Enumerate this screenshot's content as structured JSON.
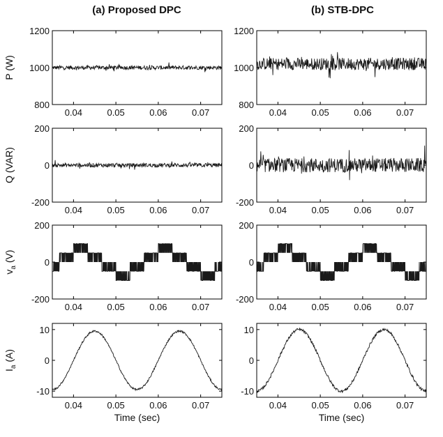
{
  "figure": {
    "columns": [
      {
        "title": "(a) Proposed DPC"
      },
      {
        "title": "(b) STB-DPC"
      }
    ],
    "xlabel": "Time (sec)"
  },
  "chart_data": [
    {
      "type": "line",
      "column": "(a) Proposed DPC",
      "ylabel": "P (W)",
      "xlim": [
        0.035,
        0.075
      ],
      "ylim": [
        800,
        1200
      ],
      "xticks": [
        0.04,
        0.05,
        0.06,
        0.07
      ],
      "xtick_labels": [
        "0.04",
        "0.05",
        "0.06",
        "0.07"
      ],
      "yticks": [
        800,
        1000,
        1200
      ],
      "ytick_labels": [
        "800",
        "1000",
        "1200"
      ],
      "series": [
        {
          "shape": "noise",
          "mean": 1000,
          "ripple": 20
        }
      ]
    },
    {
      "type": "line",
      "column": "(b) STB-DPC",
      "ylabel": "",
      "xlim": [
        0.035,
        0.075
      ],
      "ylim": [
        800,
        1200
      ],
      "xticks": [
        0.04,
        0.05,
        0.06,
        0.07
      ],
      "xtick_labels": [
        "0.04",
        "0.05",
        "0.06",
        "0.07"
      ],
      "yticks": [
        800,
        1000,
        1200
      ],
      "ytick_labels": [
        "800",
        "1000",
        "1200"
      ],
      "series": [
        {
          "shape": "noise",
          "mean": 1020,
          "ripple": 60
        }
      ]
    },
    {
      "type": "line",
      "column": "(a) Proposed DPC",
      "ylabel": "Q (VAR)",
      "xlim": [
        0.035,
        0.075
      ],
      "ylim": [
        -200,
        200
      ],
      "xticks": [
        0.04,
        0.05,
        0.06,
        0.07
      ],
      "xtick_labels": [
        "0.04",
        "0.05",
        "0.06",
        "0.07"
      ],
      "yticks": [
        -200,
        0,
        200
      ],
      "ytick_labels": [
        "-200",
        "0",
        "200"
      ],
      "series": [
        {
          "shape": "noise",
          "mean": 0,
          "ripple": 20
        }
      ]
    },
    {
      "type": "line",
      "column": "(b) STB-DPC",
      "ylabel": "",
      "xlim": [
        0.035,
        0.075
      ],
      "ylim": [
        -200,
        200
      ],
      "xticks": [
        0.04,
        0.05,
        0.06,
        0.07
      ],
      "xtick_labels": [
        "0.04",
        "0.05",
        "0.06",
        "0.07"
      ],
      "yticks": [
        -200,
        0,
        200
      ],
      "ytick_labels": [
        "-200",
        "0",
        "200"
      ],
      "series": [
        {
          "shape": "noise",
          "mean": 0,
          "ripple": 70
        }
      ]
    },
    {
      "type": "line",
      "column": "(a) Proposed DPC",
      "ylabel": "v",
      "ylabel_sub": "a",
      "ylabel_unit": "(V)",
      "xlim": [
        0.035,
        0.075
      ],
      "ylim": [
        -200,
        200
      ],
      "xticks": [
        0.04,
        0.05,
        0.06,
        0.07
      ],
      "xtick_labels": [
        "0.04",
        "0.05",
        "0.06",
        "0.07"
      ],
      "yticks": [
        -200,
        0,
        200
      ],
      "ytick_labels": [
        "-200",
        "0",
        "200"
      ],
      "series": [
        {
          "shape": "six-step-pwm",
          "frequency_hz": 50,
          "levels": [
            -100,
            -50,
            0,
            50,
            100
          ],
          "phase_deg": 60
        }
      ]
    },
    {
      "type": "line",
      "column": "(b) STB-DPC",
      "ylabel": "",
      "xlim": [
        0.035,
        0.075
      ],
      "ylim": [
        -200,
        200
      ],
      "xticks": [
        0.04,
        0.05,
        0.06,
        0.07
      ],
      "xtick_labels": [
        "0.04",
        "0.05",
        "0.06",
        "0.07"
      ],
      "yticks": [
        -200,
        0,
        200
      ],
      "ytick_labels": [
        "-200",
        "0",
        "200"
      ],
      "series": [
        {
          "shape": "six-step-pwm",
          "frequency_hz": 50,
          "levels": [
            -100,
            -50,
            0,
            50,
            100
          ],
          "phase_deg": 60
        }
      ]
    },
    {
      "type": "line",
      "column": "(a) Proposed DPC",
      "ylabel": "I",
      "ylabel_sub": "a",
      "ylabel_unit": "(A)",
      "xlabel": "Time (sec)",
      "xlim": [
        0.035,
        0.075
      ],
      "ylim": [
        -12,
        12
      ],
      "xticks": [
        0.04,
        0.05,
        0.06,
        0.07
      ],
      "xtick_labels": [
        "0.04",
        "0.05",
        "0.06",
        "0.07"
      ],
      "yticks": [
        -10,
        0,
        10
      ],
      "ytick_labels": [
        "-10",
        "0",
        "10"
      ],
      "series": [
        {
          "shape": "sine",
          "frequency_hz": 50,
          "amplitude": 9.5,
          "peak_at": 0.045,
          "ripple": 0.3
        }
      ]
    },
    {
      "type": "line",
      "column": "(b) STB-DPC",
      "ylabel": "",
      "xlabel": "Time (sec)",
      "xlim": [
        0.035,
        0.075
      ],
      "ylim": [
        -12,
        12
      ],
      "xticks": [
        0.04,
        0.05,
        0.06,
        0.07
      ],
      "xtick_labels": [
        "0.04",
        "0.05",
        "0.06",
        "0.07"
      ],
      "yticks": [
        -10,
        0,
        10
      ],
      "ytick_labels": [
        "-10",
        "0",
        "10"
      ],
      "series": [
        {
          "shape": "sine",
          "frequency_hz": 50,
          "amplitude": 10,
          "peak_at": 0.045,
          "ripple": 0.45
        }
      ]
    }
  ]
}
